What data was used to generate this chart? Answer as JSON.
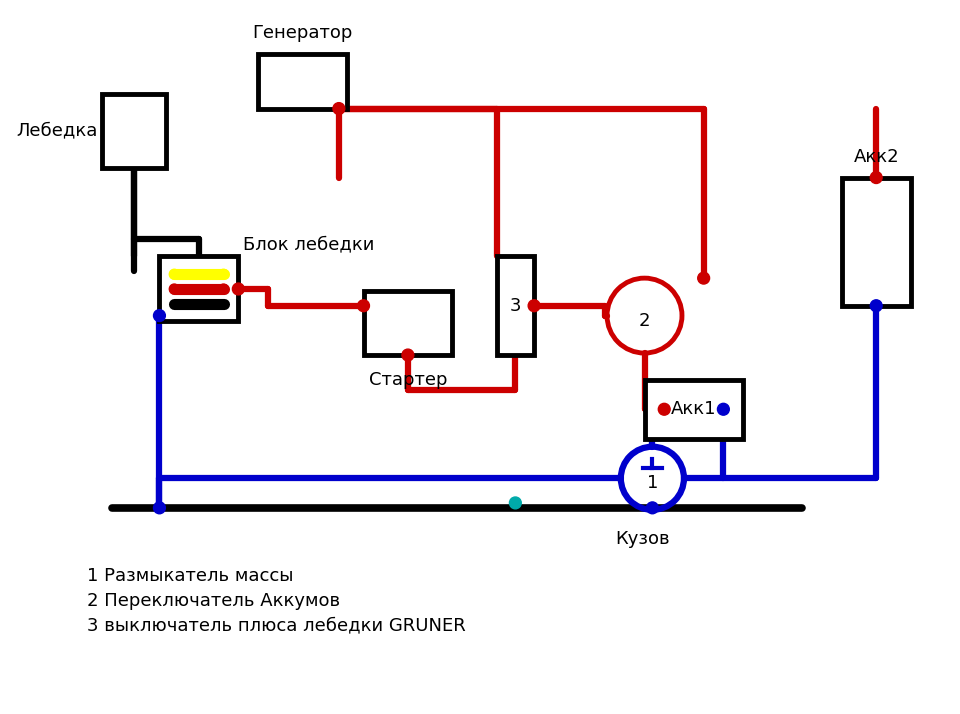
{
  "title": "",
  "bg_color": "#f0f0f0",
  "legend_lines": [
    "1 Размыкатель массы",
    "2 Переключатель Аккумов",
    "3 выключатель плюса лебедки GRUNER"
  ],
  "labels": {
    "lebedka": "Лебедка",
    "blok": "Блок лебедки",
    "generator": "Генератор",
    "starter": "Стартер",
    "kuzov": "Кузов",
    "akk1": "Акк1",
    "akk2": "Акк2"
  }
}
